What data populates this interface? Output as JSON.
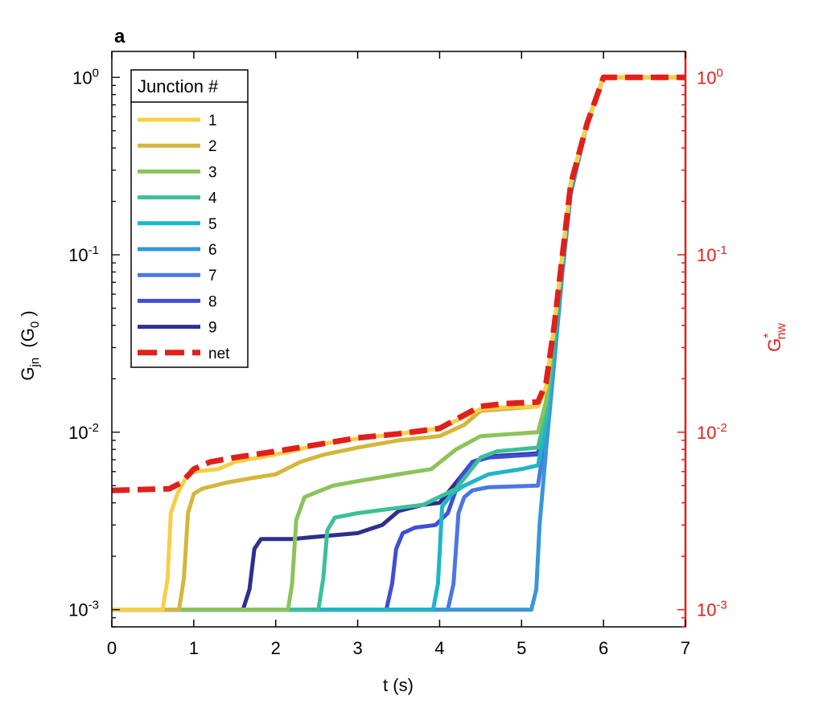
{
  "chart_data": {
    "type": "line",
    "panel_label": "a",
    "title": "",
    "xlabel": "t (s)",
    "ylabel": {
      "main": "G",
      "sub": "jn",
      "paren_open": "  (G",
      "paren_sub": "0",
      "paren_close": " )"
    },
    "ylabel_right": {
      "main": "G",
      "sup": "*",
      "sub": "nw"
    },
    "xlim": [
      0,
      7
    ],
    "ylim": [
      0.0008,
      1.4
    ],
    "yscale": "log",
    "x_ticks": [
      0,
      1,
      2,
      3,
      4,
      5,
      6,
      7
    ],
    "x_tick_labels": [
      "0",
      "1",
      "2",
      "3",
      "4",
      "5",
      "6",
      "7"
    ],
    "y_ticks": [
      {
        "value": 1,
        "base": "10",
        "exp": "0"
      },
      {
        "value": 0.1,
        "base": "10",
        "exp": "-1"
      },
      {
        "value": 0.01,
        "base": "10",
        "exp": "-2"
      },
      {
        "value": 0.001,
        "base": "10",
        "exp": "-3"
      }
    ],
    "right_axis_color": "#e0201b",
    "legend": {
      "title": "Junction #",
      "position": "top-left"
    },
    "series": [
      {
        "name": "1",
        "color": "#f7cf46",
        "points": [
          [
            0,
            0.001
          ],
          [
            0.62,
            0.001
          ],
          [
            0.68,
            0.0015
          ],
          [
            0.72,
            0.0035
          ],
          [
            0.8,
            0.0045
          ],
          [
            0.9,
            0.0055
          ],
          [
            1.0,
            0.006
          ],
          [
            1.3,
            0.0062
          ],
          [
            1.5,
            0.0068
          ],
          [
            1.8,
            0.0072
          ],
          [
            2.2,
            0.0078
          ],
          [
            2.5,
            0.0085
          ],
          [
            3.0,
            0.0092
          ],
          [
            3.5,
            0.0098
          ],
          [
            4.0,
            0.0105
          ],
          [
            4.3,
            0.0122
          ],
          [
            4.5,
            0.0135
          ],
          [
            4.8,
            0.0138
          ],
          [
            5.2,
            0.014
          ],
          [
            5.3,
            0.018
          ],
          [
            5.4,
            0.04
          ],
          [
            5.5,
            0.1
          ],
          [
            5.6,
            0.25
          ],
          [
            5.8,
            0.55
          ],
          [
            6.0,
            1.0
          ],
          [
            7.0,
            1.0
          ]
        ]
      },
      {
        "name": "2",
        "color": "#d4b63c",
        "points": [
          [
            0,
            0.001
          ],
          [
            0.82,
            0.001
          ],
          [
            0.88,
            0.0015
          ],
          [
            0.93,
            0.0035
          ],
          [
            1.0,
            0.0045
          ],
          [
            1.1,
            0.0048
          ],
          [
            1.4,
            0.0052
          ],
          [
            1.7,
            0.0055
          ],
          [
            2.0,
            0.0058
          ],
          [
            2.3,
            0.0068
          ],
          [
            2.6,
            0.0075
          ],
          [
            3.0,
            0.0082
          ],
          [
            3.5,
            0.009
          ],
          [
            4.0,
            0.0095
          ],
          [
            4.3,
            0.011
          ],
          [
            4.5,
            0.0132
          ],
          [
            4.8,
            0.0135
          ],
          [
            5.2,
            0.014
          ],
          [
            5.3,
            0.018
          ],
          [
            5.4,
            0.04
          ],
          [
            5.5,
            0.1
          ],
          [
            5.6,
            0.25
          ],
          [
            5.8,
            0.55
          ],
          [
            6.0,
            1.0
          ],
          [
            7.0,
            1.0
          ]
        ]
      },
      {
        "name": "3",
        "color": "#8cc35a",
        "points": [
          [
            0,
            0.001
          ],
          [
            2.15,
            0.001
          ],
          [
            2.2,
            0.0014
          ],
          [
            2.25,
            0.0032
          ],
          [
            2.35,
            0.0043
          ],
          [
            2.5,
            0.0046
          ],
          [
            2.7,
            0.005
          ],
          [
            3.0,
            0.0053
          ],
          [
            3.5,
            0.0058
          ],
          [
            3.9,
            0.0062
          ],
          [
            4.2,
            0.008
          ],
          [
            4.5,
            0.0095
          ],
          [
            5.2,
            0.01
          ],
          [
            5.3,
            0.015
          ],
          [
            5.4,
            0.04
          ],
          [
            5.5,
            0.1
          ],
          [
            5.6,
            0.25
          ],
          [
            5.8,
            0.55
          ],
          [
            6.0,
            1.0
          ],
          [
            7.0,
            1.0
          ]
        ]
      },
      {
        "name": "4",
        "color": "#3cbf9a",
        "points": [
          [
            0,
            0.001
          ],
          [
            2.52,
            0.001
          ],
          [
            2.58,
            0.0015
          ],
          [
            2.63,
            0.0028
          ],
          [
            2.72,
            0.0033
          ],
          [
            3.0,
            0.0035
          ],
          [
            3.4,
            0.0037
          ],
          [
            3.8,
            0.0039
          ],
          [
            4.2,
            0.0048
          ],
          [
            4.5,
            0.0072
          ],
          [
            4.7,
            0.0078
          ],
          [
            5.2,
            0.0082
          ],
          [
            5.3,
            0.013
          ],
          [
            5.4,
            0.035
          ],
          [
            5.5,
            0.1
          ],
          [
            5.6,
            0.25
          ],
          [
            5.8,
            0.55
          ],
          [
            6.0,
            1.0
          ],
          [
            7.0,
            1.0
          ]
        ]
      },
      {
        "name": "5",
        "color": "#1fb5c8",
        "points": [
          [
            0,
            0.001
          ],
          [
            3.92,
            0.001
          ],
          [
            3.98,
            0.0014
          ],
          [
            4.03,
            0.0038
          ],
          [
            4.15,
            0.0045
          ],
          [
            4.3,
            0.005
          ],
          [
            4.6,
            0.0058
          ],
          [
            5.0,
            0.0062
          ],
          [
            5.2,
            0.0065
          ],
          [
            5.3,
            0.011
          ],
          [
            5.4,
            0.03
          ],
          [
            5.5,
            0.09
          ],
          [
            5.6,
            0.25
          ],
          [
            5.8,
            0.55
          ],
          [
            6.0,
            1.0
          ],
          [
            7.0,
            1.0
          ]
        ]
      },
      {
        "name": "6",
        "color": "#3a96d8",
        "points": [
          [
            0,
            0.001
          ],
          [
            5.12,
            0.001
          ],
          [
            5.18,
            0.0013
          ],
          [
            5.22,
            0.003
          ],
          [
            5.3,
            0.008
          ],
          [
            5.4,
            0.025
          ],
          [
            5.5,
            0.08
          ],
          [
            5.6,
            0.22
          ],
          [
            5.8,
            0.55
          ],
          [
            6.0,
            1.0
          ],
          [
            7.0,
            1.0
          ]
        ]
      },
      {
        "name": "7",
        "color": "#4a78e0",
        "points": [
          [
            0,
            0.001
          ],
          [
            4.1,
            0.001
          ],
          [
            4.17,
            0.0014
          ],
          [
            4.23,
            0.0035
          ],
          [
            4.3,
            0.0043
          ],
          [
            4.4,
            0.0047
          ],
          [
            4.6,
            0.0049
          ],
          [
            5.2,
            0.005
          ],
          [
            5.3,
            0.01
          ],
          [
            5.4,
            0.028
          ],
          [
            5.5,
            0.085
          ],
          [
            5.6,
            0.23
          ],
          [
            5.8,
            0.55
          ],
          [
            6.0,
            1.0
          ],
          [
            7.0,
            1.0
          ]
        ]
      },
      {
        "name": "8",
        "color": "#3f4ed4",
        "points": [
          [
            0,
            0.001
          ],
          [
            3.35,
            0.001
          ],
          [
            3.42,
            0.0014
          ],
          [
            3.47,
            0.0022
          ],
          [
            3.55,
            0.0027
          ],
          [
            3.7,
            0.0029
          ],
          [
            3.95,
            0.003
          ],
          [
            4.1,
            0.0035
          ],
          [
            4.25,
            0.0055
          ],
          [
            4.4,
            0.0068
          ],
          [
            4.6,
            0.0072
          ],
          [
            5.2,
            0.0075
          ],
          [
            5.3,
            0.012
          ],
          [
            5.4,
            0.035
          ],
          [
            5.5,
            0.1
          ],
          [
            5.6,
            0.25
          ],
          [
            5.8,
            0.55
          ],
          [
            6.0,
            1.0
          ],
          [
            7.0,
            1.0
          ]
        ]
      },
      {
        "name": "9",
        "color": "#2f2f8e",
        "points": [
          [
            0,
            0.001
          ],
          [
            1.6,
            0.001
          ],
          [
            1.68,
            0.0013
          ],
          [
            1.74,
            0.0022
          ],
          [
            1.82,
            0.0025
          ],
          [
            2.2,
            0.0025
          ],
          [
            2.6,
            0.0026
          ],
          [
            3.0,
            0.0027
          ],
          [
            3.3,
            0.003
          ],
          [
            3.5,
            0.0036
          ],
          [
            3.8,
            0.0039
          ],
          [
            4.0,
            0.004
          ],
          [
            4.2,
            0.0052
          ],
          [
            4.4,
            0.0068
          ],
          [
            4.6,
            0.0073
          ],
          [
            5.2,
            0.0076
          ],
          [
            5.3,
            0.012
          ],
          [
            5.4,
            0.035
          ],
          [
            5.5,
            0.1
          ],
          [
            5.6,
            0.25
          ],
          [
            5.8,
            0.55
          ],
          [
            6.0,
            1.0
          ],
          [
            7.0,
            1.0
          ]
        ]
      },
      {
        "name": "net",
        "color": "#e0201b",
        "dashed": true,
        "points": [
          [
            0,
            0.0047
          ],
          [
            0.7,
            0.0048
          ],
          [
            0.85,
            0.0052
          ],
          [
            1.0,
            0.0062
          ],
          [
            1.2,
            0.0068
          ],
          [
            1.5,
            0.0072
          ],
          [
            2.0,
            0.0078
          ],
          [
            2.5,
            0.0085
          ],
          [
            3.0,
            0.0093
          ],
          [
            3.5,
            0.0098
          ],
          [
            4.0,
            0.0105
          ],
          [
            4.3,
            0.0125
          ],
          [
            4.5,
            0.014
          ],
          [
            4.8,
            0.0145
          ],
          [
            5.2,
            0.0148
          ],
          [
            5.3,
            0.019
          ],
          [
            5.4,
            0.04
          ],
          [
            5.5,
            0.1
          ],
          [
            5.6,
            0.25
          ],
          [
            5.8,
            0.55
          ],
          [
            6.0,
            1.0
          ],
          [
            7.0,
            1.0
          ]
        ]
      }
    ]
  }
}
